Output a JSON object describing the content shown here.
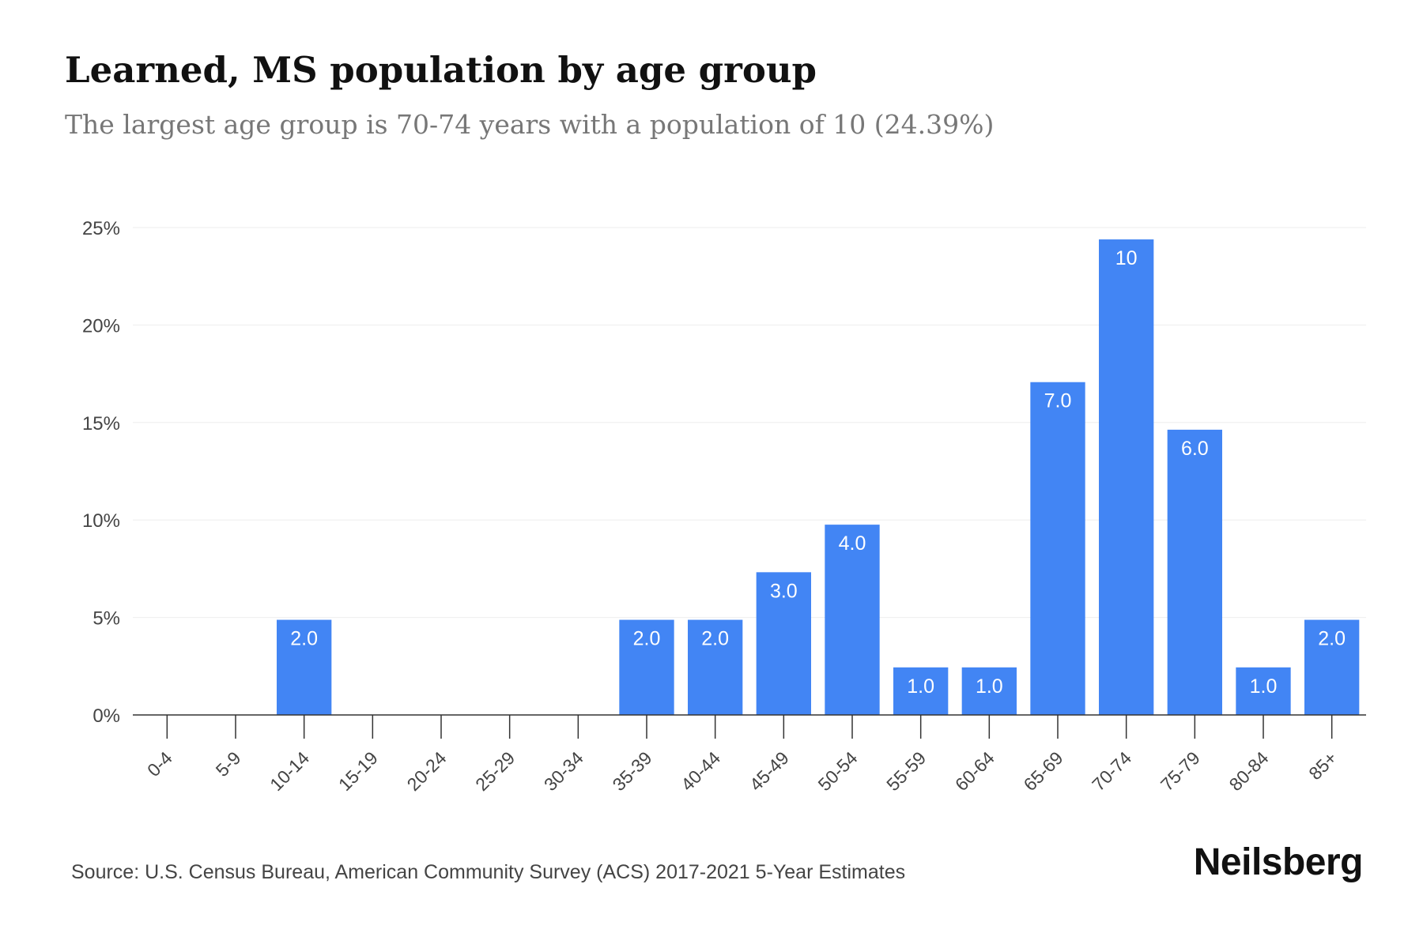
{
  "header": {
    "title": "Learned, MS population by age group",
    "subtitle": "The largest age group is 70-74 years with a population of 10 (24.39%)"
  },
  "footer": {
    "source": "Source: U.S. Census Bureau, American Community Survey (ACS) 2017-2021 5-Year Estimates",
    "brand": "Neilsberg"
  },
  "colors": {
    "bar": "#4285f4",
    "bar_label": "#ffffff",
    "grid": "#eeeeee",
    "axis": "#333333",
    "tick_text": "#444444"
  },
  "chart_data": {
    "type": "bar",
    "categories": [
      "0-4",
      "5-9",
      "10-14",
      "15-19",
      "20-24",
      "25-29",
      "30-34",
      "35-39",
      "40-44",
      "45-49",
      "50-54",
      "55-59",
      "60-64",
      "65-69",
      "70-74",
      "75-79",
      "80-84",
      "85+"
    ],
    "values": [
      0,
      0,
      4.88,
      0,
      0,
      0,
      0,
      4.88,
      4.88,
      7.32,
      9.76,
      2.44,
      2.44,
      17.07,
      24.39,
      14.63,
      2.44,
      4.88
    ],
    "bar_labels": [
      "",
      "",
      "2.0",
      "",
      "",
      "",
      "",
      "2.0",
      "2.0",
      "3.0",
      "4.0",
      "1.0",
      "1.0",
      "7.0",
      "10",
      "6.0",
      "1.0",
      "2.0"
    ],
    "y_ticks": [
      0,
      5,
      10,
      15,
      20,
      25
    ],
    "y_tick_labels": [
      "0%",
      "5%",
      "10%",
      "15%",
      "20%",
      "25%"
    ],
    "ylim": [
      0,
      25
    ],
    "grid": true,
    "legend": "none"
  }
}
